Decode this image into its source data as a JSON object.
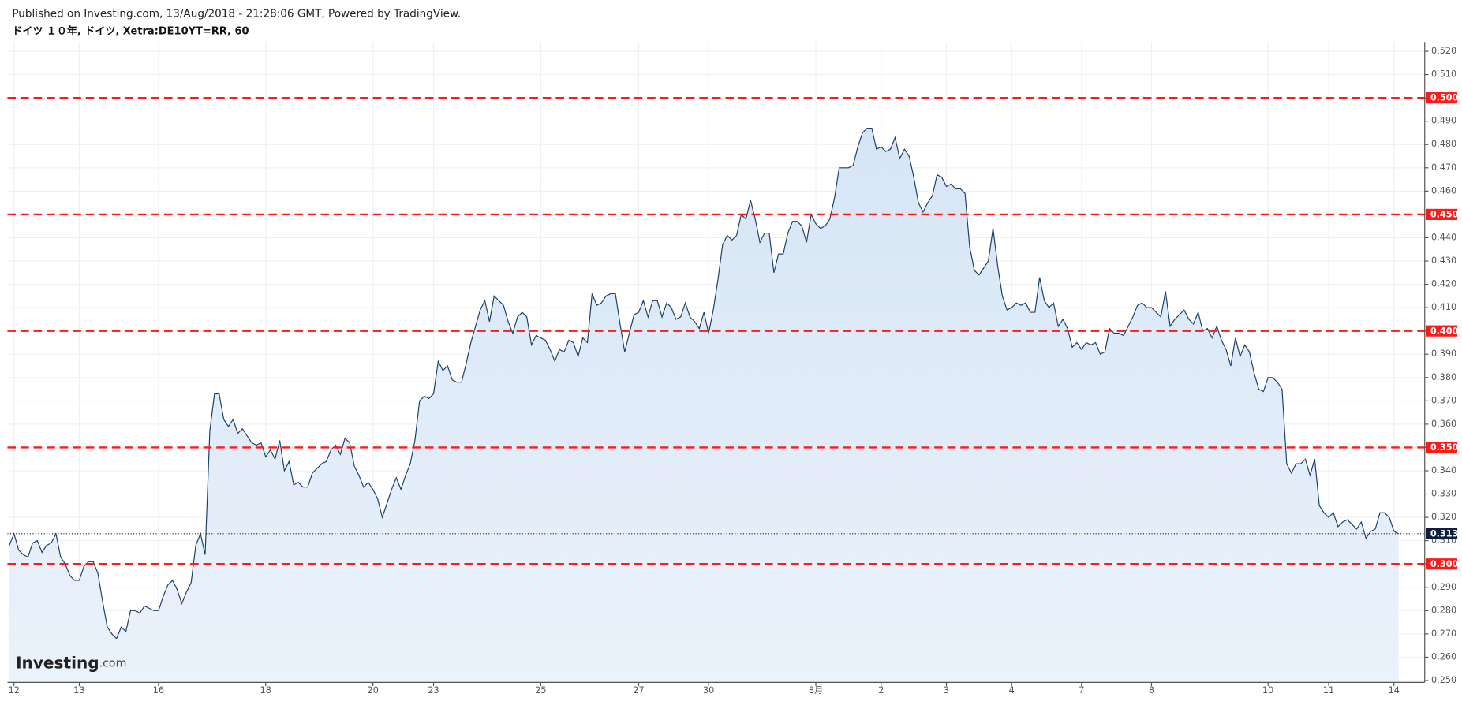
{
  "header": {
    "published": "Published on Investing.com, 13/Aug/2018 - 21:28:06 GMT, Powered by TradingView.",
    "symbol": "ドイツ １０年, ドイツ, Xetra:DE10YT=RR, 60"
  },
  "logo": {
    "brand": "Investing",
    "suffix": ".com"
  },
  "chart_data": {
    "type": "area",
    "series": [
      {
        "name": "DE10YT=RR",
        "color": "#1b3f6b",
        "values": [
          0.308,
          0.313,
          0.306,
          0.304,
          0.303,
          0.309,
          0.31,
          0.305,
          0.308,
          0.309,
          0.313,
          0.303,
          0.3,
          0.295,
          0.293,
          0.293,
          0.299,
          0.301,
          0.301,
          0.296,
          0.284,
          0.273,
          0.27,
          0.268,
          0.273,
          0.271,
          0.28,
          0.28,
          0.279,
          0.282,
          0.281,
          0.28,
          0.28,
          0.286,
          0.291,
          0.293,
          0.289,
          0.283,
          0.288,
          0.292,
          0.308,
          0.313,
          0.304,
          0.357,
          0.373,
          0.373,
          0.362,
          0.359,
          0.362,
          0.356,
          0.358,
          0.355,
          0.352,
          0.351,
          0.352,
          0.346,
          0.349,
          0.345,
          0.353,
          0.34,
          0.344,
          0.334,
          0.335,
          0.333,
          0.333,
          0.339,
          0.341,
          0.343,
          0.344,
          0.349,
          0.351,
          0.347,
          0.354,
          0.352,
          0.342,
          0.338,
          0.333,
          0.335,
          0.332,
          0.328,
          0.32,
          0.326,
          0.332,
          0.337,
          0.332,
          0.338,
          0.343,
          0.353,
          0.37,
          0.372,
          0.371,
          0.373,
          0.387,
          0.383,
          0.385,
          0.379,
          0.378,
          0.378,
          0.386,
          0.395,
          0.402,
          0.409,
          0.413,
          0.404,
          0.415,
          0.413,
          0.411,
          0.404,
          0.399,
          0.406,
          0.408,
          0.406,
          0.394,
          0.398,
          0.397,
          0.396,
          0.392,
          0.387,
          0.392,
          0.391,
          0.396,
          0.395,
          0.389,
          0.397,
          0.395,
          0.416,
          0.411,
          0.412,
          0.415,
          0.416,
          0.416,
          0.403,
          0.391,
          0.399,
          0.407,
          0.408,
          0.413,
          0.406,
          0.413,
          0.413,
          0.406,
          0.412,
          0.41,
          0.405,
          0.406,
          0.412,
          0.406,
          0.404,
          0.401,
          0.408,
          0.399,
          0.409,
          0.422,
          0.437,
          0.441,
          0.439,
          0.441,
          0.45,
          0.448,
          0.456,
          0.448,
          0.438,
          0.442,
          0.442,
          0.425,
          0.433,
          0.433,
          0.442,
          0.447,
          0.447,
          0.445,
          0.438,
          0.45,
          0.446,
          0.444,
          0.445,
          0.448,
          0.457,
          0.47,
          0.47,
          0.47,
          0.471,
          0.479,
          0.485,
          0.487,
          0.487,
          0.478,
          0.479,
          0.477,
          0.478,
          0.483,
          0.474,
          0.478,
          0.475,
          0.466,
          0.455,
          0.451,
          0.455,
          0.458,
          0.467,
          0.466,
          0.462,
          0.463,
          0.461,
          0.461,
          0.459,
          0.436,
          0.426,
          0.424,
          0.427,
          0.43,
          0.444,
          0.428,
          0.415,
          0.409,
          0.41,
          0.412,
          0.411,
          0.412,
          0.408,
          0.408,
          0.423,
          0.413,
          0.41,
          0.412,
          0.402,
          0.405,
          0.401,
          0.393,
          0.395,
          0.392,
          0.395,
          0.394,
          0.395,
          0.39,
          0.391,
          0.401,
          0.399,
          0.399,
          0.398,
          0.402,
          0.406,
          0.411,
          0.412,
          0.41,
          0.41,
          0.408,
          0.406,
          0.417,
          0.402,
          0.405,
          0.407,
          0.409,
          0.405,
          0.403,
          0.408,
          0.4,
          0.401,
          0.397,
          0.402,
          0.396,
          0.392,
          0.385,
          0.397,
          0.389,
          0.394,
          0.391,
          0.382,
          0.375,
          0.374,
          0.38,
          0.38,
          0.378,
          0.375,
          0.343,
          0.339,
          0.343,
          0.343,
          0.345,
          0.338,
          0.345,
          0.325,
          0.322,
          0.32,
          0.322,
          0.316,
          0.318,
          0.319,
          0.317,
          0.315,
          0.318,
          0.311,
          0.314,
          0.315,
          0.322,
          0.322,
          0.32,
          0.314,
          0.313
        ]
      }
    ],
    "xlim": [
      -0.4,
      303.6
    ],
    "xticks": [
      {
        "value": 1,
        "label": "12"
      },
      {
        "value": 15,
        "label": "13"
      },
      {
        "value": 32,
        "label": "16"
      },
      {
        "value": 55,
        "label": "18"
      },
      {
        "value": 78,
        "label": "20"
      },
      {
        "value": 91,
        "label": "23"
      },
      {
        "value": 114,
        "label": "25"
      },
      {
        "value": 135,
        "label": "27"
      },
      {
        "value": 150,
        "label": "30"
      },
      {
        "value": 173,
        "label": "8月"
      },
      {
        "value": 187,
        "label": "2"
      },
      {
        "value": 201,
        "label": "3"
      },
      {
        "value": 215,
        "label": "4"
      },
      {
        "value": 230,
        "label": "7"
      },
      {
        "value": 245,
        "label": "8"
      },
      {
        "value": 270,
        "label": "10"
      },
      {
        "value": 283,
        "label": "11"
      },
      {
        "value": 297,
        "label": "14"
      }
    ],
    "ylim": [
      0.25,
      0.52
    ],
    "yticks": [
      {
        "value": 0.25,
        "label": "0.250"
      },
      {
        "value": 0.26,
        "label": "0.260"
      },
      {
        "value": 0.27,
        "label": "0.270"
      },
      {
        "value": 0.28,
        "label": "0.280"
      },
      {
        "value": 0.29,
        "label": "0.290"
      },
      {
        "value": 0.3,
        "label": "0.300"
      },
      {
        "value": 0.31,
        "label": "0.310"
      },
      {
        "value": 0.32,
        "label": "0.320"
      },
      {
        "value": 0.33,
        "label": "0.330"
      },
      {
        "value": 0.34,
        "label": "0.340"
      },
      {
        "value": 0.35,
        "label": "0.350"
      },
      {
        "value": 0.36,
        "label": "0.360"
      },
      {
        "value": 0.37,
        "label": "0.370"
      },
      {
        "value": 0.38,
        "label": "0.380"
      },
      {
        "value": 0.39,
        "label": "0.390"
      },
      {
        "value": 0.4,
        "label": "0.400"
      },
      {
        "value": 0.41,
        "label": "0.410"
      },
      {
        "value": 0.42,
        "label": "0.420"
      },
      {
        "value": 0.43,
        "label": "0.430"
      },
      {
        "value": 0.44,
        "label": "0.440"
      },
      {
        "value": 0.45,
        "label": "0.450"
      },
      {
        "value": 0.46,
        "label": "0.460"
      },
      {
        "value": 0.47,
        "label": "0.470"
      },
      {
        "value": 0.48,
        "label": "0.480"
      },
      {
        "value": 0.49,
        "label": "0.490"
      },
      {
        "value": 0.5,
        "label": "0.500"
      },
      {
        "value": 0.51,
        "label": "0.510"
      },
      {
        "value": 0.52,
        "label": "0.520"
      }
    ],
    "grid": true,
    "levels": {
      "color": "#ff1a1a",
      "items": [
        {
          "value": 0.5,
          "label": "0.500"
        },
        {
          "value": 0.45,
          "label": "0.450"
        },
        {
          "value": 0.4,
          "label": "0.400"
        },
        {
          "value": 0.35,
          "label": "0.350"
        },
        {
          "value": 0.3,
          "label": "0.300"
        }
      ]
    },
    "last_price": {
      "value": 0.313,
      "label": "0.313",
      "color": "#0d1f3c"
    }
  }
}
